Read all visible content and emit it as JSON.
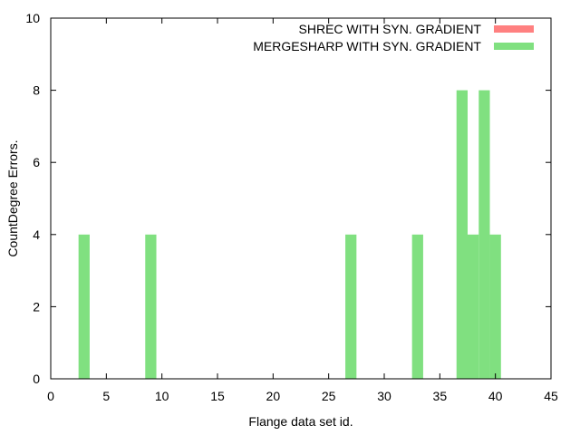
{
  "chart_data": {
    "type": "bar",
    "xlabel": "Flange data set id.",
    "ylabel": "CountDegree Errors.",
    "xlim": [
      0,
      45
    ],
    "ylim": [
      0,
      10
    ],
    "xticks": [
      0,
      5,
      10,
      15,
      20,
      25,
      30,
      35,
      40,
      45
    ],
    "yticks": [
      0,
      2,
      4,
      6,
      8,
      10
    ],
    "grid": false,
    "legend_position": "top-right",
    "series": [
      {
        "name": "SHREC WITH SYN. GRADIENT",
        "color": "#ff8080",
        "points": []
      },
      {
        "name": "MERGESHARP WITH SYN. GRADIENT",
        "color": "#80e080",
        "points": [
          {
            "x": 3,
            "y": 4
          },
          {
            "x": 9,
            "y": 4
          },
          {
            "x": 27,
            "y": 4
          },
          {
            "x": 33,
            "y": 4
          },
          {
            "x": 37,
            "y": 8
          },
          {
            "x": 38,
            "y": 4
          },
          {
            "x": 39,
            "y": 8
          },
          {
            "x": 40,
            "y": 4
          }
        ]
      }
    ]
  }
}
